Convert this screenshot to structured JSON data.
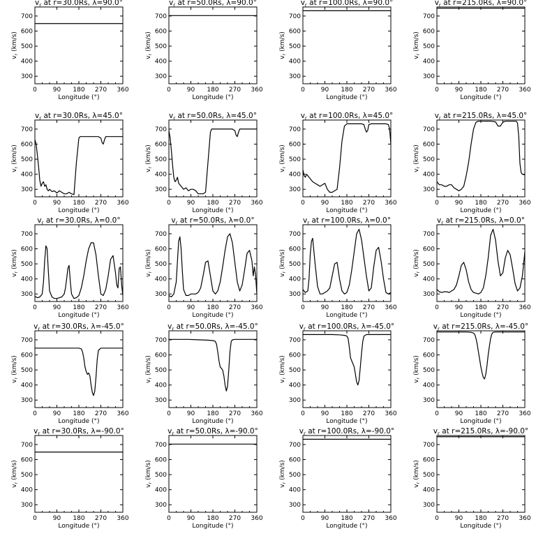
{
  "chart_data": {
    "type": "line",
    "panel_layout": "5 rows x 4 columns",
    "x_label": "Longitude (°)",
    "y_label": "vr (km/s)",
    "y_label_main": "v",
    "y_label_sub": "r",
    "y_label_unit": "(km/s)",
    "x_range": [
      0,
      360
    ],
    "y_range": [
      250,
      760
    ],
    "x_ticks": [
      0,
      90,
      180,
      270,
      360
    ],
    "y_ticks": [
      300,
      400,
      500,
      600,
      700
    ],
    "grid": false,
    "legend": "none",
    "panels": [
      {
        "title_pre": "v",
        "title_sub": "r",
        "title_post": " at r=30.0Rs, λ=90.0°",
        "constant": 650
      },
      {
        "title_pre": "v",
        "title_sub": "r",
        "title_post": " at r=50.0Rs, λ=90.0°",
        "constant": 703
      },
      {
        "title_pre": "v",
        "title_sub": "r",
        "title_post": " at r=100.0Rs, λ=90.0°",
        "constant": 735
      },
      {
        "title_pre": "v",
        "title_sub": "r",
        "title_post": " at r=215.0Rs, λ=90.0°",
        "constant": 752
      },
      {
        "title_pre": "v",
        "title_sub": "r",
        "title_post": " at r=30.0Rs, λ=45.0°",
        "x": [
          0,
          5,
          10,
          15,
          20,
          25,
          30,
          35,
          40,
          45,
          50,
          55,
          60,
          70,
          80,
          90,
          100,
          110,
          120,
          130,
          140,
          150,
          160,
          170,
          180,
          185,
          190,
          200,
          210,
          220,
          240,
          260,
          270,
          275,
          280,
          285,
          290,
          300,
          310,
          320,
          330,
          340,
          350,
          360
        ],
        "y": [
          630,
          600,
          530,
          450,
          360,
          320,
          340,
          350,
          320,
          330,
          300,
          290,
          300,
          285,
          290,
          275,
          290,
          280,
          270,
          270,
          280,
          270,
          265,
          480,
          640,
          650,
          650,
          650,
          650,
          650,
          650,
          650,
          640,
          610,
          600,
          630,
          650,
          650,
          650,
          650,
          650,
          650,
          650,
          650
        ]
      },
      {
        "title_pre": "v",
        "title_sub": "r",
        "title_post": " at r=50.0Rs, λ=45.0°",
        "x": [
          0,
          5,
          10,
          15,
          20,
          25,
          30,
          35,
          40,
          50,
          60,
          70,
          80,
          90,
          100,
          110,
          120,
          130,
          140,
          150,
          160,
          170,
          175,
          180,
          190,
          200,
          220,
          240,
          260,
          270,
          275,
          280,
          285,
          290,
          300,
          320,
          340,
          360
        ],
        "y": [
          690,
          640,
          560,
          460,
          380,
          350,
          360,
          380,
          340,
          320,
          300,
          310,
          290,
          300,
          300,
          290,
          270,
          270,
          270,
          280,
          480,
          680,
          700,
          700,
          700,
          700,
          700,
          700,
          700,
          690,
          660,
          650,
          680,
          700,
          700,
          700,
          700,
          700
        ]
      },
      {
        "title_pre": "v",
        "title_sub": "r",
        "title_post": " at r=100.0Rs, λ=45.0°",
        "x": [
          0,
          5,
          10,
          15,
          20,
          30,
          40,
          50,
          60,
          70,
          80,
          90,
          100,
          110,
          120,
          130,
          140,
          150,
          160,
          170,
          180,
          190,
          200,
          210,
          220,
          240,
          250,
          255,
          260,
          265,
          270,
          280,
          290,
          300,
          320,
          340,
          350,
          355,
          360
        ],
        "y": [
          430,
          390,
          380,
          400,
          390,
          370,
          350,
          340,
          330,
          320,
          330,
          340,
          300,
          280,
          280,
          290,
          300,
          440,
          620,
          720,
          735,
          735,
          735,
          735,
          735,
          735,
          730,
          700,
          680,
          690,
          730,
          735,
          735,
          735,
          735,
          735,
          730,
          700,
          600
        ]
      },
      {
        "title_pre": "v",
        "title_sub": "r",
        "title_post": " at r=215.0Rs, λ=45.0°",
        "x": [
          0,
          10,
          20,
          30,
          40,
          50,
          60,
          70,
          80,
          90,
          100,
          110,
          120,
          130,
          140,
          150,
          160,
          170,
          180,
          200,
          220,
          240,
          250,
          260,
          270,
          280,
          290,
          300,
          310,
          320,
          325,
          330,
          335,
          340,
          345,
          350,
          360
        ],
        "y": [
          350,
          330,
          330,
          320,
          320,
          330,
          330,
          310,
          300,
          290,
          300,
          320,
          390,
          480,
          600,
          700,
          745,
          752,
          752,
          752,
          752,
          748,
          720,
          720,
          745,
          752,
          752,
          752,
          752,
          752,
          752,
          740,
          650,
          470,
          410,
          400,
          395
        ]
      },
      {
        "title_pre": "v",
        "title_sub": "r",
        "title_post": " at r=30.0Rs, λ=0.0°",
        "x": [
          0,
          10,
          20,
          30,
          35,
          40,
          45,
          50,
          55,
          60,
          70,
          80,
          90,
          100,
          110,
          120,
          125,
          130,
          135,
          140,
          145,
          150,
          160,
          170,
          180,
          190,
          200,
          210,
          220,
          230,
          240,
          250,
          260,
          270,
          280,
          290,
          300,
          310,
          320,
          330,
          335,
          340,
          345,
          350,
          355,
          360
        ],
        "y": [
          285,
          275,
          280,
          300,
          380,
          520,
          620,
          600,
          450,
          320,
          280,
          270,
          270,
          275,
          280,
          300,
          340,
          400,
          470,
          490,
          380,
          300,
          270,
          275,
          290,
          340,
          420,
          520,
          600,
          640,
          640,
          560,
          420,
          300,
          290,
          330,
          420,
          530,
          555,
          440,
          360,
          340,
          470,
          480,
          360,
          290
        ]
      },
      {
        "title_pre": "v",
        "title_sub": "r",
        "title_post": " at r=50.0Rs, λ=0.0°",
        "x": [
          0,
          10,
          20,
          30,
          35,
          40,
          45,
          50,
          55,
          60,
          70,
          80,
          90,
          100,
          110,
          120,
          130,
          140,
          150,
          160,
          170,
          180,
          190,
          200,
          210,
          220,
          230,
          240,
          250,
          260,
          270,
          280,
          290,
          300,
          310,
          320,
          330,
          340,
          345,
          350,
          355,
          360
        ],
        "y": [
          290,
          280,
          300,
          380,
          520,
          650,
          680,
          600,
          450,
          330,
          290,
          290,
          300,
          300,
          300,
          310,
          340,
          420,
          510,
          520,
          420,
          320,
          300,
          320,
          380,
          480,
          590,
          680,
          700,
          640,
          510,
          380,
          320,
          360,
          460,
          570,
          590,
          520,
          420,
          480,
          420,
          300
        ]
      },
      {
        "title_pre": "v",
        "title_sub": "r",
        "title_post": " at r=100.0Rs, λ=0.0°",
        "x": [
          0,
          10,
          20,
          25,
          30,
          35,
          40,
          50,
          60,
          70,
          80,
          90,
          100,
          110,
          120,
          130,
          140,
          150,
          160,
          170,
          180,
          190,
          200,
          210,
          220,
          230,
          240,
          250,
          260,
          270,
          280,
          290,
          300,
          310,
          320,
          330,
          340,
          350,
          360
        ],
        "y": [
          330,
          310,
          320,
          400,
          560,
          650,
          670,
          500,
          350,
          300,
          300,
          310,
          320,
          340,
          420,
          500,
          510,
          400,
          320,
          300,
          310,
          360,
          460,
          580,
          700,
          730,
          660,
          540,
          420,
          320,
          340,
          480,
          590,
          610,
          520,
          400,
          310,
          300,
          310
        ]
      },
      {
        "title_pre": "v",
        "title_sub": "r",
        "title_post": " at r=215.0Rs, λ=0.0°",
        "x": [
          0,
          10,
          20,
          30,
          40,
          50,
          60,
          70,
          80,
          90,
          100,
          110,
          120,
          130,
          140,
          150,
          160,
          170,
          180,
          190,
          200,
          210,
          220,
          230,
          240,
          250,
          260,
          270,
          280,
          290,
          300,
          310,
          320,
          330,
          340,
          350,
          360
        ],
        "y": [
          330,
          315,
          310,
          315,
          315,
          310,
          320,
          330,
          360,
          420,
          490,
          510,
          460,
          380,
          330,
          310,
          305,
          300,
          310,
          340,
          420,
          540,
          690,
          730,
          660,
          520,
          420,
          440,
          540,
          590,
          560,
          470,
          370,
          320,
          340,
          420,
          580
        ]
      },
      {
        "title_pre": "v",
        "title_sub": "r",
        "title_post": " at r=30.0Rs, λ=-45.0°",
        "x": [
          0,
          40,
          80,
          120,
          160,
          180,
          190,
          195,
          200,
          205,
          210,
          215,
          220,
          225,
          230,
          235,
          240,
          245,
          250,
          255,
          260,
          270,
          300,
          330,
          360
        ],
        "y": [
          645,
          645,
          645,
          645,
          645,
          645,
          640,
          620,
          580,
          520,
          490,
          470,
          480,
          460,
          400,
          350,
          330,
          360,
          450,
          570,
          630,
          645,
          645,
          645,
          645
        ]
      },
      {
        "title_pre": "v",
        "title_sub": "r",
        "title_post": " at r=50.0Rs, λ=-45.0°",
        "x": [
          0,
          40,
          80,
          120,
          160,
          180,
          190,
          195,
          200,
          205,
          210,
          215,
          220,
          225,
          230,
          235,
          240,
          245,
          250,
          255,
          260,
          270,
          300,
          330,
          360
        ],
        "y": [
          703,
          703,
          703,
          700,
          698,
          695,
          690,
          670,
          620,
          560,
          520,
          510,
          500,
          460,
          400,
          360,
          390,
          500,
          620,
          690,
          700,
          703,
          703,
          703,
          703
        ]
      },
      {
        "title_pre": "v",
        "title_sub": "r",
        "title_post": " at r=100.0Rs, λ=-45.0°",
        "x": [
          0,
          40,
          80,
          120,
          150,
          170,
          180,
          185,
          190,
          195,
          200,
          205,
          210,
          215,
          220,
          225,
          230,
          235,
          240,
          245,
          250,
          260,
          280,
          300,
          330,
          360
        ],
        "y": [
          735,
          735,
          735,
          735,
          733,
          730,
          725,
          710,
          650,
          580,
          560,
          540,
          520,
          470,
          420,
          400,
          430,
          520,
          610,
          690,
          725,
          735,
          735,
          735,
          735,
          735
        ]
      },
      {
        "title_pre": "v",
        "title_sub": "r",
        "title_post": " at r=215.0Rs, λ=-45.0°",
        "x": [
          0,
          40,
          80,
          120,
          140,
          150,
          155,
          160,
          165,
          170,
          175,
          180,
          185,
          190,
          195,
          200,
          205,
          210,
          215,
          220,
          225,
          230,
          240,
          260,
          300,
          330,
          360
        ],
        "y": [
          752,
          752,
          752,
          752,
          750,
          745,
          735,
          710,
          670,
          620,
          570,
          520,
          480,
          450,
          440,
          470,
          530,
          600,
          660,
          710,
          740,
          750,
          752,
          752,
          752,
          752,
          752
        ]
      },
      {
        "title_pre": "v",
        "title_sub": "r",
        "title_post": " at r=30.0Rs, λ=-90.0°",
        "constant": 650
      },
      {
        "title_pre": "v",
        "title_sub": "r",
        "title_post": " at r=50.0Rs, λ=-90.0°",
        "constant": 703
      },
      {
        "title_pre": "v",
        "title_sub": "r",
        "title_post": " at r=100.0Rs, λ=-90.0°",
        "constant": 735
      },
      {
        "title_pre": "v",
        "title_sub": "r",
        "title_post": " at r=215.0Rs, λ=-90.0°",
        "constant": 752
      }
    ]
  }
}
